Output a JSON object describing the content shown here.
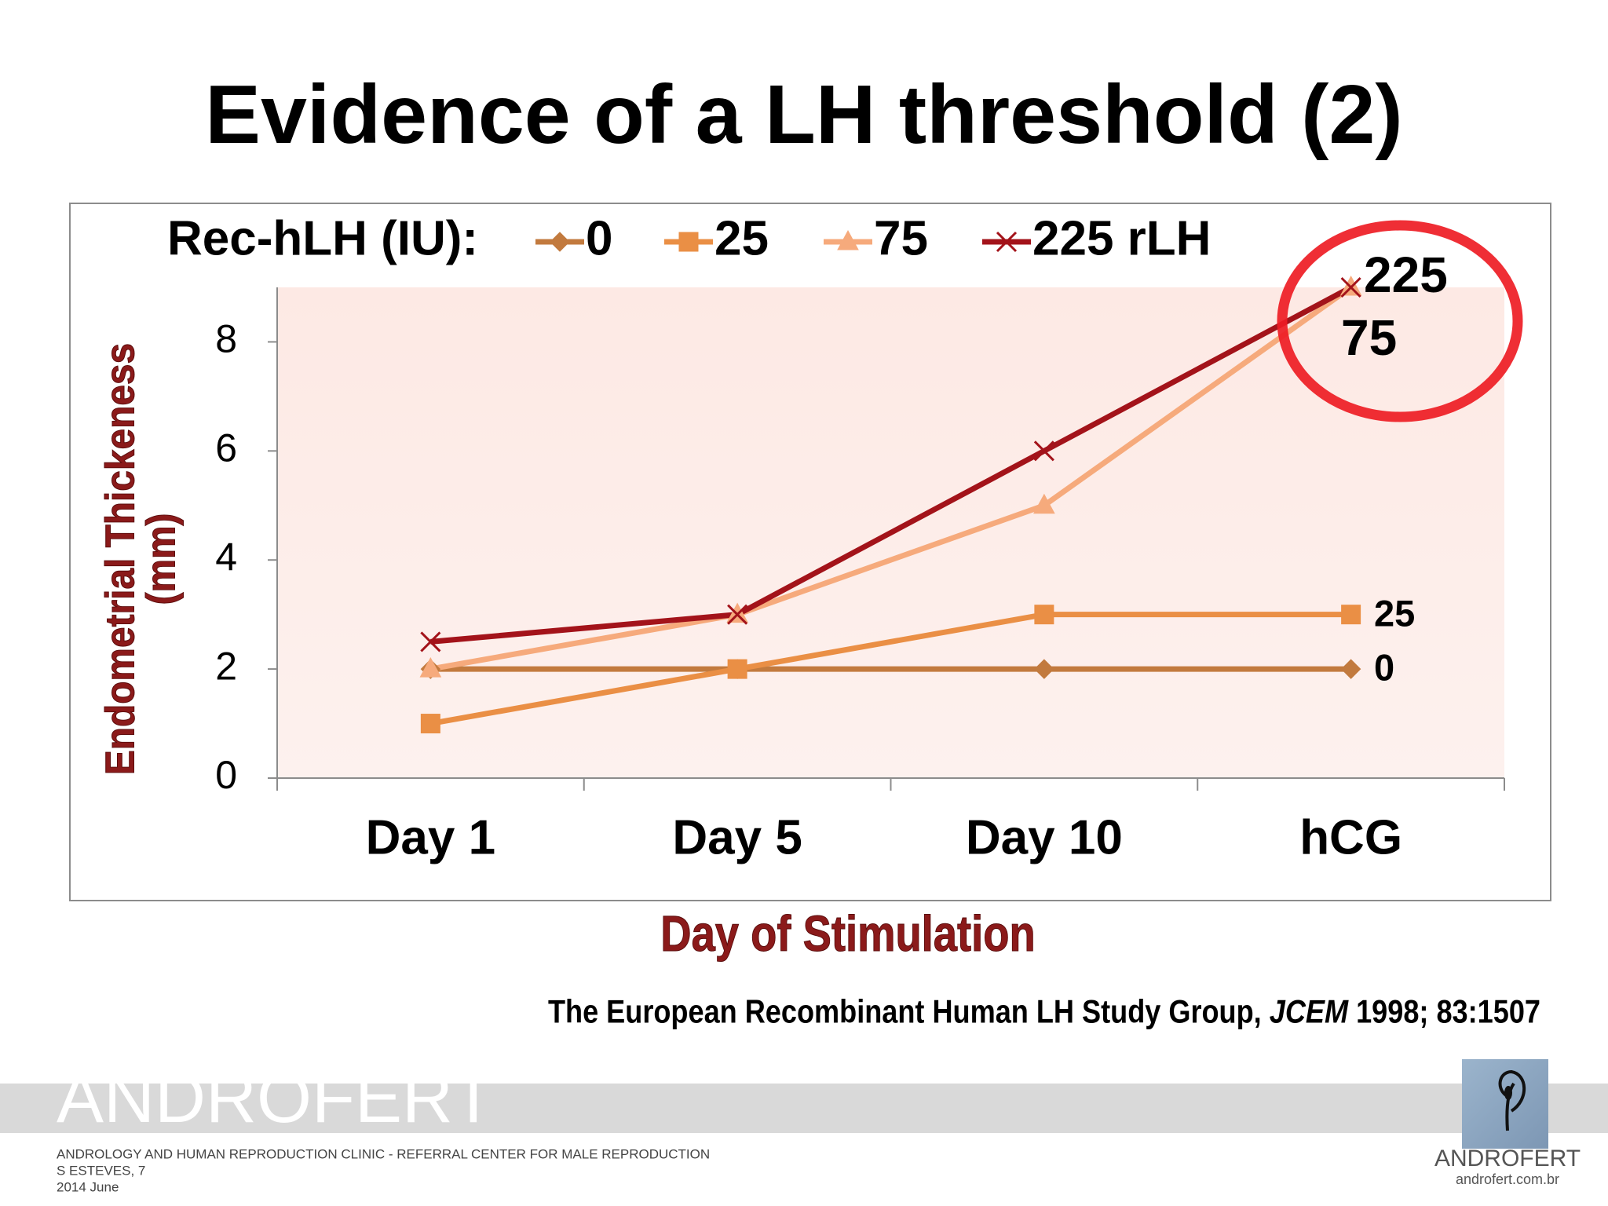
{
  "chart_data": {
    "type": "line",
    "title": "Evidence of a LH threshold (2)",
    "legend_title": "Rec-hLH (IU):",
    "categories": [
      "Day 1",
      "Day 5",
      "Day 10",
      "hCG"
    ],
    "series": [
      {
        "name": "0",
        "color": "#c27a3e",
        "marker": "diamond",
        "values": [
          2,
          2,
          2,
          2
        ]
      },
      {
        "name": "25",
        "color": "#ea8f45",
        "marker": "square",
        "values": [
          1,
          2,
          3,
          3
        ]
      },
      {
        "name": "75",
        "color": "#f6aa7c",
        "marker": "triangle",
        "values": [
          2,
          3,
          5,
          9
        ]
      },
      {
        "name": "225 rLH",
        "color": "#a3131a",
        "marker": "x",
        "values": [
          2.5,
          3,
          6,
          9
        ]
      }
    ],
    "end_labels": [
      "0",
      "25",
      "75",
      "225"
    ],
    "ylim": [
      0,
      9
    ],
    "yticks": [
      0,
      2,
      4,
      6,
      8
    ],
    "x_label": "Day of Stimulation",
    "y_label": [
      "Endometrial Thickeness",
      "(mm)"
    ]
  },
  "citation": {
    "before": "The European Recombinant Human LH Study Group, ",
    "journal": "JCEM",
    "after": " 1998; 83:1507"
  },
  "footer": {
    "brand": "ANDROFERT",
    "lines": [
      "ANDROLOGY AND HUMAN REPRODUCTION CLINIC - REFERRAL CENTER FOR MALE REPRODUCTION",
      "S ESTEVES, 7",
      "2014 June"
    ],
    "logo_name": "ANDROFERT",
    "logo_url": "androfert.com.br"
  }
}
